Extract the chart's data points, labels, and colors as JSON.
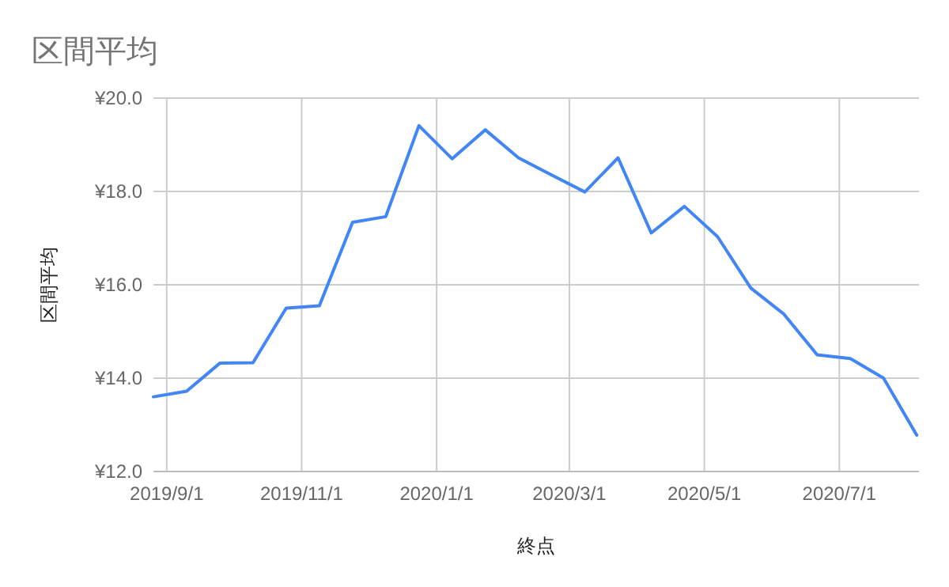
{
  "chart_data": {
    "type": "line",
    "title": "区間平均",
    "xlabel": "終点",
    "ylabel": "区間平均",
    "x": [
      "2019-08-26",
      "2019-09-10",
      "2019-09-25",
      "2019-10-10",
      "2019-10-25",
      "2019-11-09",
      "2019-11-24",
      "2019-12-09",
      "2019-12-24",
      "2020-01-08",
      "2020-01-23",
      "2020-02-07",
      "2020-02-22",
      "2020-03-08",
      "2020-03-23",
      "2020-04-07",
      "2020-04-22",
      "2020-05-07",
      "2020-05-22",
      "2020-06-06",
      "2020-06-21",
      "2020-07-06",
      "2020-07-21",
      "2020-08-05"
    ],
    "series": [
      {
        "color": "#4285f4",
        "values": [
          13.6,
          13.72,
          14.32,
          14.33,
          15.5,
          15.55,
          17.34,
          17.46,
          19.41,
          18.7,
          19.32,
          18.72,
          18.35,
          17.99,
          18.72,
          17.11,
          17.68,
          17.03,
          15.93,
          15.37,
          14.5,
          14.42,
          14.0,
          12.78
        ]
      }
    ],
    "xlim": [
      "2019-08-26",
      "2020-08-06"
    ],
    "xticks": [
      {
        "value": "2019-09-01",
        "label": "2019/9/1"
      },
      {
        "value": "2019-11-01",
        "label": "2019/11/1"
      },
      {
        "value": "2020-01-01",
        "label": "2020/1/1"
      },
      {
        "value": "2020-03-01",
        "label": "2020/3/1"
      },
      {
        "value": "2020-05-01",
        "label": "2020/5/1"
      },
      {
        "value": "2020-07-01",
        "label": "2020/7/1"
      }
    ],
    "ylim": [
      12,
      20
    ],
    "yticks": [
      {
        "value": 12,
        "label": "¥12.0"
      },
      {
        "value": 14,
        "label": "¥14.0"
      },
      {
        "value": 16,
        "label": "¥16.0"
      },
      {
        "value": 18,
        "label": "¥18.0"
      },
      {
        "value": 20,
        "label": "¥20.0"
      }
    ],
    "grid": true,
    "line_style": "solid",
    "marker": "none"
  }
}
